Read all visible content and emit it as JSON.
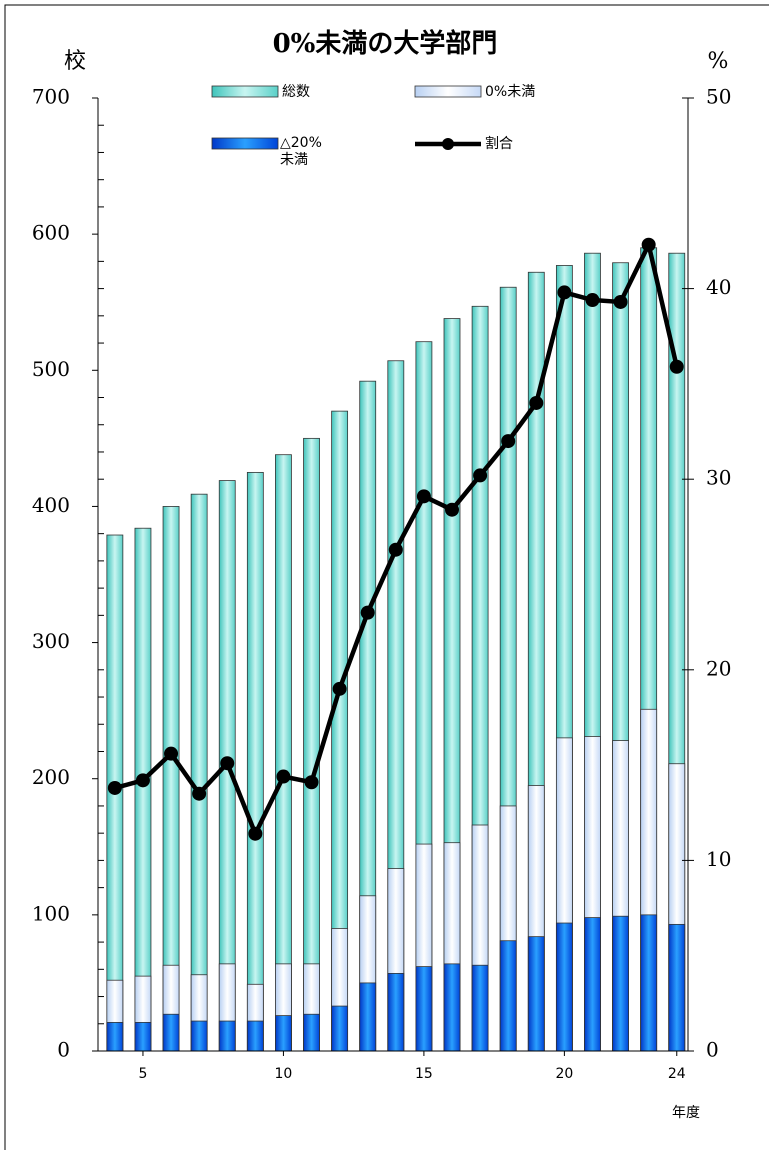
{
  "chart_data": {
    "type": "bar",
    "title": "0%未満の大学部門",
    "ylabel": "校",
    "y2label": "%",
    "xlabel": "年度",
    "x": [
      4,
      5,
      6,
      7,
      8,
      9,
      10,
      11,
      12,
      13,
      14,
      15,
      16,
      17,
      18,
      19,
      20,
      21,
      22,
      23,
      24
    ],
    "xlim": [
      3.4,
      24.4
    ],
    "xticks": [
      5,
      10,
      15,
      20,
      24
    ],
    "ylim": [
      0,
      700
    ],
    "yticks": [
      0,
      100,
      200,
      300,
      400,
      500,
      600,
      700
    ],
    "y2lim": [
      0,
      50
    ],
    "y2ticks": [
      0,
      10,
      20,
      30,
      40,
      50
    ],
    "series": [
      {
        "name": "総数",
        "color": "#7fe3da",
        "values": [
          379,
          384,
          400,
          409,
          419,
          425,
          438,
          450,
          470,
          492,
          507,
          521,
          538,
          547,
          561,
          572,
          577,
          586,
          579,
          590,
          586
        ]
      },
      {
        "name": "0%未満",
        "color": "#dce9fb",
        "values": [
          52,
          55,
          63,
          56,
          64,
          49,
          64,
          64,
          90,
          114,
          134,
          152,
          153,
          166,
          180,
          195,
          230,
          231,
          228,
          251,
          211
        ]
      },
      {
        "name": "△20%未満",
        "color": "#0a64ec",
        "values": [
          21,
          21,
          27,
          22,
          22,
          22,
          26,
          27,
          33,
          50,
          57,
          62,
          64,
          63,
          81,
          84,
          94,
          98,
          99,
          100,
          93
        ]
      },
      {
        "name": "割合",
        "color": "#000000",
        "type": "line",
        "axis": "y2",
        "values": [
          13.8,
          14.2,
          15.6,
          13.5,
          15.1,
          11.4,
          14.4,
          14.1,
          19.0,
          23.0,
          26.3,
          29.1,
          28.4,
          30.2,
          32.0,
          34.0,
          39.8,
          39.4,
          39.3,
          42.3,
          35.9
        ]
      }
    ]
  }
}
